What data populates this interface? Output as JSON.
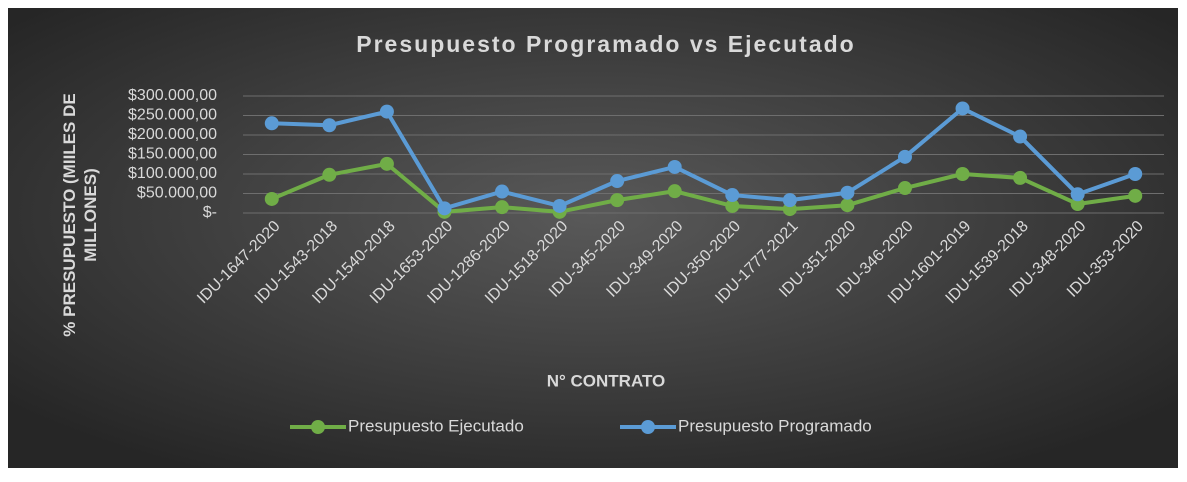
{
  "chart_data": {
    "type": "line",
    "title": "Presupuesto Programado vs Ejecutado",
    "x_label": "N° CONTRATO",
    "y_label": "% PRESUPUESTO (MIILES DE MILLONES)",
    "categories": [
      "IDU-1647-2020",
      "IDU-1543-2018",
      "IDU-1540-2018",
      "IDU-1653-2020",
      "IDU-1286-2020",
      "IDU-1518-2020",
      "IDU-345-2020",
      "IDU-349-2020",
      "IDU-350-2020",
      "IDU-1777-2021",
      "IDU-351-2020",
      "IDU-346-2020",
      "IDU-1601-2019",
      "IDU-1539-2018",
      "IDU-348-2020",
      "IDU-353-2020"
    ],
    "series": [
      {
        "name": "Presupuesto Ejecutado",
        "color": "#70ad47",
        "values": [
          36000,
          98000,
          126000,
          3000,
          15000,
          3000,
          33000,
          56000,
          18000,
          10000,
          20000,
          64000,
          100000,
          90000,
          23000,
          44000
        ]
      },
      {
        "name": "Presupuesto Programado",
        "color": "#5b9bd5",
        "values": [
          230000,
          225000,
          260000,
          12000,
          55000,
          18000,
          82000,
          118000,
          46000,
          33000,
          52000,
          144000,
          268000,
          196000,
          48000,
          100000
        ]
      }
    ],
    "ylim": [
      0,
      300000
    ],
    "yticks": [
      {
        "value": 0,
        "label": "$-"
      },
      {
        "value": 50000,
        "label": "$50.000,00"
      },
      {
        "value": 100000,
        "label": "$100.000,00"
      },
      {
        "value": 150000,
        "label": "$150.000,00"
      },
      {
        "value": 200000,
        "label": "$200.000,00"
      },
      {
        "value": 250000,
        "label": "$250.000,00"
      },
      {
        "value": 300000,
        "label": "$300.000,00"
      }
    ],
    "grid": true,
    "legend": "bottom"
  }
}
